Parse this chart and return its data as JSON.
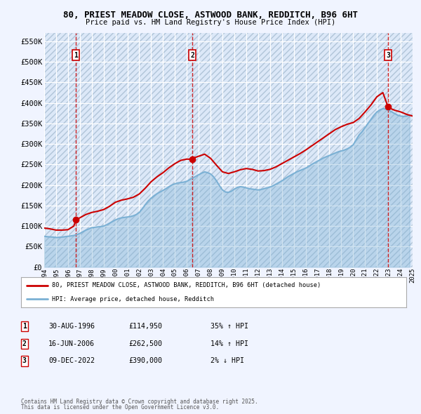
{
  "title": "80, PRIEST MEADOW CLOSE, ASTWOOD BANK, REDDITCH, B96 6HT",
  "subtitle": "Price paid vs. HM Land Registry's House Price Index (HPI)",
  "background_color": "#f0f4ff",
  "plot_bg_color": "#dce8f8",
  "grid_color": "#ffffff",
  "hpi_color": "#7ab0d4",
  "price_color": "#cc0000",
  "dashed_line_color": "#cc0000",
  "ylim": [
    0,
    570000
  ],
  "yticks": [
    0,
    50000,
    100000,
    150000,
    200000,
    250000,
    300000,
    350000,
    400000,
    450000,
    500000,
    550000
  ],
  "ytick_labels": [
    "£0",
    "£50K",
    "£100K",
    "£150K",
    "£200K",
    "£250K",
    "£300K",
    "£350K",
    "£400K",
    "£450K",
    "£500K",
    "£550K"
  ],
  "xmin_year": 1994,
  "xmax_year": 2025,
  "xtick_years": [
    1994,
    1995,
    1996,
    1997,
    1998,
    1999,
    2000,
    2001,
    2002,
    2003,
    2004,
    2005,
    2006,
    2007,
    2008,
    2009,
    2010,
    2011,
    2012,
    2013,
    2014,
    2015,
    2016,
    2017,
    2018,
    2019,
    2020,
    2021,
    2022,
    2023,
    2024,
    2025
  ],
  "sale_dates_yr": [
    1996.664,
    2006.458,
    2022.936
  ],
  "sale_prices": [
    114950,
    262500,
    390000
  ],
  "sale_labels": [
    "1",
    "2",
    "3"
  ],
  "legend_line1": "80, PRIEST MEADOW CLOSE, ASTWOOD BANK, REDDITCH, B96 6HT (detached house)",
  "legend_line2": "HPI: Average price, detached house, Redditch",
  "table_entries": [
    {
      "label": "1",
      "date": "30-AUG-1996",
      "price": "£114,950",
      "hpi": "35% ↑ HPI"
    },
    {
      "label": "2",
      "date": "16-JUN-2006",
      "price": "£262,500",
      "hpi": "14% ↑ HPI"
    },
    {
      "label": "3",
      "date": "09-DEC-2022",
      "price": "£390,000",
      "hpi": "2% ↓ HPI"
    }
  ],
  "footnote1": "Contains HM Land Registry data © Crown copyright and database right 2025.",
  "footnote2": "This data is licensed under the Open Government Licence v3.0.",
  "hpi_years": [
    1994.0,
    1994.25,
    1994.5,
    1994.75,
    1995.0,
    1995.25,
    1995.5,
    1995.75,
    1996.0,
    1996.25,
    1996.5,
    1996.75,
    1997.0,
    1997.25,
    1997.5,
    1997.75,
    1998.0,
    1998.25,
    1998.5,
    1998.75,
    1999.0,
    1999.25,
    1999.5,
    1999.75,
    2000.0,
    2000.25,
    2000.5,
    2000.75,
    2001.0,
    2001.25,
    2001.5,
    2001.75,
    2002.0,
    2002.25,
    2002.5,
    2002.75,
    2003.0,
    2003.25,
    2003.5,
    2003.75,
    2004.0,
    2004.25,
    2004.5,
    2004.75,
    2005.0,
    2005.25,
    2005.5,
    2005.75,
    2006.0,
    2006.25,
    2006.5,
    2006.75,
    2007.0,
    2007.25,
    2007.5,
    2007.75,
    2008.0,
    2008.25,
    2008.5,
    2008.75,
    2009.0,
    2009.25,
    2009.5,
    2009.75,
    2010.0,
    2010.25,
    2010.5,
    2010.75,
    2011.0,
    2011.25,
    2011.5,
    2011.75,
    2012.0,
    2012.25,
    2012.5,
    2012.75,
    2013.0,
    2013.25,
    2013.5,
    2013.75,
    2014.0,
    2014.25,
    2014.5,
    2014.75,
    2015.0,
    2015.25,
    2015.5,
    2015.75,
    2016.0,
    2016.25,
    2016.5,
    2016.75,
    2017.0,
    2017.25,
    2017.5,
    2017.75,
    2018.0,
    2018.25,
    2018.5,
    2018.75,
    2019.0,
    2019.25,
    2019.5,
    2019.75,
    2020.0,
    2020.25,
    2020.5,
    2020.75,
    2021.0,
    2021.25,
    2021.5,
    2021.75,
    2022.0,
    2022.25,
    2022.5,
    2022.75,
    2023.0,
    2023.25,
    2023.5,
    2023.75,
    2024.0,
    2024.25,
    2024.5,
    2024.75
  ],
  "hpi_values": [
    75000,
    74000,
    73500,
    73000,
    72000,
    72500,
    73000,
    74000,
    75000,
    76000,
    77000,
    79000,
    82000,
    86000,
    90000,
    93000,
    96000,
    97000,
    98000,
    98500,
    100000,
    103000,
    107000,
    111000,
    115000,
    118000,
    120000,
    121000,
    122000,
    123000,
    125000,
    128000,
    133000,
    142000,
    152000,
    161000,
    168000,
    174000,
    179000,
    183000,
    187000,
    191000,
    196000,
    200000,
    203000,
    205000,
    206000,
    207000,
    209000,
    213000,
    217000,
    221000,
    225000,
    229000,
    232000,
    230000,
    227000,
    220000,
    210000,
    198000,
    188000,
    183000,
    182000,
    185000,
    190000,
    194000,
    196000,
    195000,
    193000,
    191000,
    190000,
    189000,
    188000,
    189000,
    191000,
    193000,
    195000,
    198000,
    202000,
    206000,
    210000,
    215000,
    220000,
    224000,
    228000,
    232000,
    235000,
    238000,
    241000,
    245000,
    250000,
    254000,
    258000,
    262000,
    266000,
    269000,
    272000,
    275000,
    278000,
    281000,
    283000,
    285000,
    288000,
    292000,
    298000,
    310000,
    322000,
    330000,
    340000,
    350000,
    360000,
    370000,
    378000,
    383000,
    386000,
    385000,
    382000,
    378000,
    374000,
    370000,
    368000,
    367000,
    368000,
    370000
  ],
  "price_years": [
    1994.0,
    1994.5,
    1995.0,
    1995.5,
    1996.0,
    1996.5,
    1996.664,
    1997.0,
    1997.5,
    1998.0,
    1998.5,
    1999.0,
    1999.5,
    2000.0,
    2000.5,
    2001.0,
    2001.5,
    2002.0,
    2002.5,
    2003.0,
    2003.5,
    2004.0,
    2004.5,
    2005.0,
    2005.5,
    2006.0,
    2006.458,
    2006.5,
    2007.0,
    2007.5,
    2008.0,
    2008.5,
    2009.0,
    2009.5,
    2010.0,
    2010.5,
    2011.0,
    2011.5,
    2012.0,
    2012.5,
    2013.0,
    2013.5,
    2014.0,
    2014.5,
    2015.0,
    2015.5,
    2016.0,
    2016.5,
    2017.0,
    2017.5,
    2018.0,
    2018.5,
    2019.0,
    2019.5,
    2020.0,
    2020.5,
    2021.0,
    2021.5,
    2022.0,
    2022.5,
    2022.936,
    2023.0,
    2023.5,
    2024.0,
    2024.5,
    2025.0
  ],
  "price_values": [
    95000,
    93000,
    90000,
    90000,
    91000,
    100000,
    114950,
    120000,
    128000,
    133000,
    136000,
    140000,
    148000,
    158000,
    163000,
    166000,
    170000,
    178000,
    192000,
    208000,
    220000,
    230000,
    242000,
    252000,
    260000,
    263000,
    262500,
    265000,
    270000,
    275000,
    265000,
    248000,
    232000,
    228000,
    232000,
    237000,
    240000,
    238000,
    234000,
    235000,
    238000,
    244000,
    252000,
    260000,
    268000,
    276000,
    285000,
    295000,
    305000,
    315000,
    325000,
    335000,
    342000,
    348000,
    352000,
    362000,
    378000,
    395000,
    415000,
    425000,
    390000,
    388000,
    382000,
    378000,
    372000,
    368000
  ]
}
